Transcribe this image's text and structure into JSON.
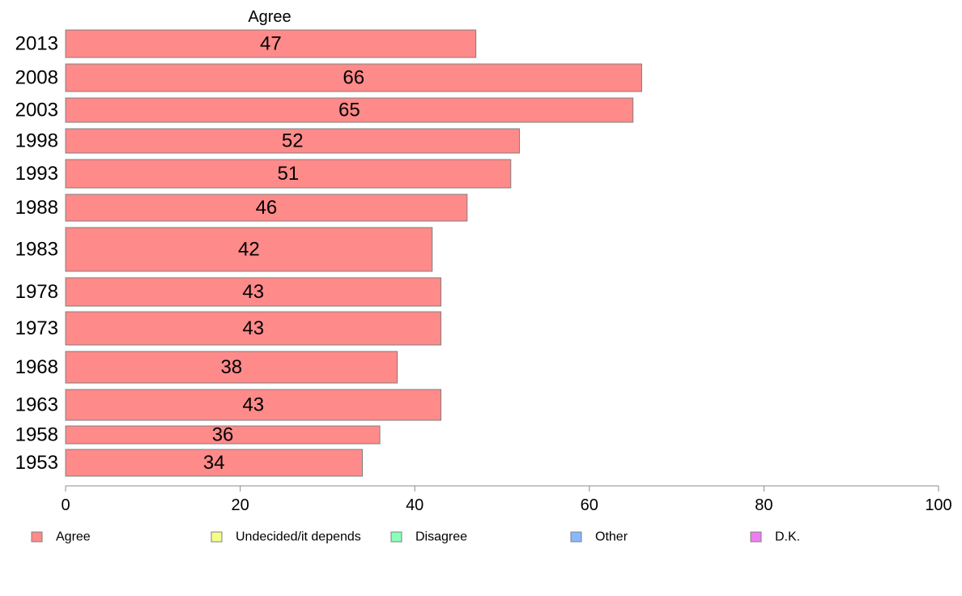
{
  "chart_data": {
    "type": "bar",
    "orientation": "horizontal",
    "header": "Agree",
    "categories": [
      "2013",
      "2008",
      "2003",
      "1998",
      "1993",
      "1988",
      "1983",
      "1978",
      "1973",
      "1968",
      "1963",
      "1958",
      "1953"
    ],
    "series": [
      {
        "name": "Agree",
        "color": "#ff8a8a",
        "values": [
          47,
          66,
          65,
          52,
          51,
          46,
          42,
          43,
          43,
          38,
          43,
          36,
          34
        ]
      }
    ],
    "xlim": [
      0,
      100
    ],
    "xticks": [
      0,
      20,
      40,
      60,
      80,
      100
    ],
    "grid": false,
    "legend_position": "bottom",
    "legend": [
      {
        "label": "Agree",
        "color": "#ff8a8a"
      },
      {
        "label": "Undecided/it depends",
        "color": "#f4ff8a"
      },
      {
        "label": "Disagree",
        "color": "#8affb8"
      },
      {
        "label": "Other",
        "color": "#8ab8ff"
      },
      {
        "label": "D.K.",
        "color": "#ee7ef0"
      }
    ]
  }
}
